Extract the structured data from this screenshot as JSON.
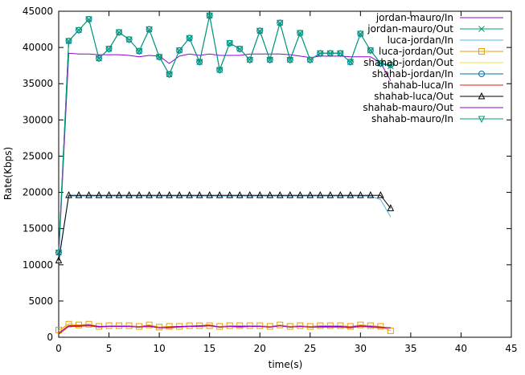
{
  "chart_data": {
    "type": "line",
    "xlabel": "time(s)",
    "ylabel": "Rate(Kbps)",
    "xlim": [
      0,
      45
    ],
    "ylim": [
      0,
      45000
    ],
    "xticks": [
      0,
      5,
      10,
      15,
      20,
      25,
      30,
      35,
      40,
      45
    ],
    "yticks": [
      0,
      5000,
      10000,
      15000,
      20000,
      25000,
      30000,
      35000,
      40000,
      45000
    ],
    "grid": false,
    "legend_position": "top-right",
    "series": [
      {
        "name": "jordan-mauro/In",
        "color": "#9400d3",
        "marker": "none",
        "x": [
          0,
          1,
          2,
          3,
          4,
          5,
          6,
          7,
          8,
          9,
          10,
          11,
          12,
          13,
          14,
          15,
          16,
          17,
          18,
          19,
          20,
          21,
          22,
          23,
          24,
          25,
          26,
          27,
          28,
          29,
          30,
          31,
          32,
          33
        ],
        "y": [
          11000,
          39200,
          39100,
          39100,
          39000,
          39000,
          39000,
          38900,
          38700,
          38900,
          38800,
          37800,
          38800,
          39100,
          38900,
          39100,
          38900,
          38900,
          38900,
          39100,
          39100,
          39100,
          39100,
          39000,
          38800,
          38600,
          38800,
          38800,
          38800,
          38700,
          38700,
          38700,
          37900,
          35400
        ]
      },
      {
        "name": "jordan-mauro/Out",
        "color": "#009e73",
        "marker": "x",
        "x": [
          0,
          1,
          2,
          3,
          4,
          5,
          6,
          7,
          8,
          9,
          10,
          11,
          12,
          13,
          14,
          15,
          16,
          17,
          18,
          19,
          20,
          21,
          22,
          23,
          24,
          25,
          26,
          27,
          28,
          29,
          30,
          31,
          32,
          33
        ],
        "y": [
          11700,
          40900,
          42400,
          43900,
          38500,
          39800,
          42100,
          41100,
          39500,
          42500,
          38700,
          36300,
          39600,
          41300,
          38000,
          44400,
          36900,
          40600,
          39800,
          38300,
          42300,
          38300,
          43400,
          38300,
          42000,
          38300,
          39200,
          39200,
          39200,
          38000,
          41900,
          39600,
          37800,
          37400
        ]
      },
      {
        "name": "luca-jordan/In",
        "color": "#56b4e9",
        "marker": "none",
        "x": [
          0,
          1,
          2,
          3,
          4,
          5,
          6,
          7,
          8,
          9,
          10,
          11,
          12,
          13,
          14,
          15,
          16,
          17,
          18,
          19,
          20,
          21,
          22,
          23,
          24,
          25,
          26,
          27,
          28,
          29,
          30,
          31,
          32,
          33
        ],
        "y": [
          10300,
          19500,
          19500,
          19500,
          19500,
          19500,
          19500,
          19500,
          19500,
          19500,
          19500,
          19500,
          19500,
          19500,
          19500,
          19500,
          19500,
          19500,
          19500,
          19500,
          19500,
          19500,
          19500,
          19500,
          19500,
          19500,
          19500,
          19500,
          19500,
          19500,
          19500,
          19500,
          19000,
          16600
        ]
      },
      {
        "name": "luca-jordan/Out",
        "color": "#e69f00",
        "marker": "square",
        "x": [
          0,
          1,
          2,
          3,
          4,
          5,
          6,
          7,
          8,
          9,
          10,
          11,
          12,
          13,
          14,
          15,
          16,
          17,
          18,
          19,
          20,
          21,
          22,
          23,
          24,
          25,
          26,
          27,
          28,
          29,
          30,
          31,
          32,
          33
        ],
        "y": [
          1000,
          1800,
          1700,
          1800,
          1500,
          1600,
          1600,
          1600,
          1500,
          1700,
          1400,
          1500,
          1500,
          1600,
          1600,
          1600,
          1500,
          1600,
          1600,
          1600,
          1600,
          1500,
          1700,
          1500,
          1600,
          1500,
          1600,
          1600,
          1600,
          1500,
          1700,
          1600,
          1500,
          900
        ]
      },
      {
        "name": "shahab-jordan/Out",
        "color": "#f0e442",
        "marker": "none",
        "x": [
          0,
          1,
          2,
          3,
          4,
          5,
          6,
          7,
          8,
          9,
          10,
          11,
          12,
          13,
          14,
          15,
          16,
          17,
          18,
          19,
          20,
          21,
          22,
          23,
          24,
          25,
          26,
          27,
          28,
          29,
          30,
          31,
          32,
          33
        ],
        "y": [
          900,
          1600,
          1600,
          1700,
          1500,
          1500,
          1500,
          1500,
          1400,
          1600,
          1300,
          1400,
          1400,
          1500,
          1500,
          1500,
          1400,
          1500,
          1500,
          1500,
          1500,
          1400,
          1600,
          1400,
          1500,
          1400,
          1500,
          1500,
          1500,
          1400,
          1600,
          1500,
          1400,
          1300
        ]
      },
      {
        "name": "shahab-jordan/In",
        "color": "#0072b2",
        "marker": "circle",
        "x": [
          0,
          1,
          2,
          3,
          4,
          5,
          6,
          7,
          8,
          9,
          10,
          11,
          12,
          13,
          14,
          15,
          16,
          17,
          18,
          19,
          20,
          21,
          22,
          23,
          24,
          25,
          26,
          27,
          28,
          29,
          30,
          31,
          32,
          33
        ],
        "y": [
          11700,
          40900,
          42400,
          43900,
          38500,
          39800,
          42100,
          41100,
          39500,
          42500,
          38700,
          36300,
          39600,
          41300,
          38000,
          44400,
          36900,
          40600,
          39800,
          38300,
          42300,
          38300,
          43400,
          38300,
          42000,
          38300,
          39200,
          39200,
          39200,
          38000,
          41900,
          39600,
          37800,
          37600
        ]
      },
      {
        "name": "shahab-luca/In",
        "color": "#e51e10",
        "marker": "none",
        "x": [
          0,
          1,
          2,
          3,
          4,
          5,
          6,
          7,
          8,
          9,
          10,
          11,
          12,
          13,
          14,
          15,
          16,
          17,
          18,
          19,
          20,
          21,
          22,
          23,
          24,
          25,
          26,
          27,
          28,
          29,
          30,
          31,
          32,
          33
        ],
        "y": [
          400,
          1500,
          1500,
          1600,
          1400,
          1500,
          1500,
          1500,
          1400,
          1500,
          1300,
          1300,
          1400,
          1500,
          1600,
          1700,
          1400,
          1500,
          1400,
          1500,
          1500,
          1400,
          1600,
          1400,
          1500,
          1400,
          1400,
          1400,
          1400,
          1300,
          1500,
          1400,
          1300,
          1300
        ]
      },
      {
        "name": "shahab-luca/Out",
        "color": "#000000",
        "marker": "triangle-up",
        "x": [
          0,
          1,
          2,
          3,
          4,
          5,
          6,
          7,
          8,
          9,
          10,
          11,
          12,
          13,
          14,
          15,
          16,
          17,
          18,
          19,
          20,
          21,
          22,
          23,
          24,
          25,
          26,
          27,
          28,
          29,
          30,
          31,
          32,
          33
        ],
        "y": [
          10600,
          19600,
          19600,
          19600,
          19600,
          19600,
          19600,
          19600,
          19600,
          19600,
          19600,
          19600,
          19600,
          19600,
          19600,
          19600,
          19600,
          19600,
          19600,
          19600,
          19600,
          19600,
          19600,
          19600,
          19600,
          19600,
          19600,
          19600,
          19600,
          19600,
          19600,
          19600,
          19600,
          17800
        ]
      },
      {
        "name": "shahab-mauro/Out",
        "color": "#9400d3",
        "marker": "none",
        "x": [
          0,
          1,
          2,
          3,
          4,
          5,
          6,
          7,
          8,
          9,
          10,
          11,
          12,
          13,
          14,
          15,
          16,
          17,
          18,
          19,
          20,
          21,
          22,
          23,
          24,
          25,
          26,
          27,
          28,
          29,
          30,
          31,
          32,
          33
        ],
        "y": [
          600,
          1600,
          1600,
          1700,
          1500,
          1500,
          1500,
          1500,
          1400,
          1600,
          1300,
          1400,
          1500,
          1500,
          1500,
          1600,
          1400,
          1500,
          1500,
          1500,
          1500,
          1400,
          1600,
          1400,
          1500,
          1400,
          1500,
          1500,
          1500,
          1400,
          1600,
          1500,
          1400,
          1300
        ]
      },
      {
        "name": "shahab-mauro/In",
        "color": "#009e73",
        "marker": "triangle-down",
        "x": [
          0,
          1,
          2,
          3,
          4,
          5,
          6,
          7,
          8,
          9,
          10,
          11,
          12,
          13,
          14,
          15,
          16,
          17,
          18,
          19,
          20,
          21,
          22,
          23,
          24,
          25,
          26,
          27,
          28,
          29,
          30,
          31,
          32,
          33
        ],
        "y": [
          11700,
          40900,
          42400,
          43900,
          38500,
          39800,
          42100,
          41100,
          39500,
          42500,
          38700,
          36300,
          39600,
          41300,
          38000,
          44400,
          36900,
          40600,
          39800,
          38300,
          42300,
          38300,
          43400,
          38300,
          42000,
          38300,
          39200,
          39200,
          39200,
          38000,
          41900,
          39600,
          37800,
          37600
        ]
      }
    ]
  }
}
